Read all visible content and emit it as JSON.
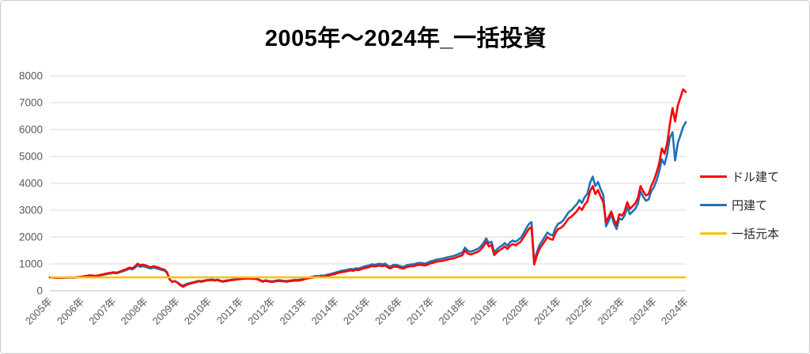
{
  "page": {
    "title": "2005年～2024年_一括投資"
  },
  "chart_data": {
    "type": "line",
    "title": "2005年～2024年_一括投資",
    "x_unit": "month",
    "x_months": 240,
    "x_start_year": "2005",
    "x_end_year": "2024",
    "x_tick_labels": [
      "2005年",
      "2006年",
      "2007年",
      "2008年",
      "2009年",
      "2010年",
      "2011年",
      "2012年",
      "2013年",
      "2014年",
      "2015年",
      "2016年",
      "2017年",
      "2018年",
      "2019年",
      "2020年",
      "2021年",
      "2022年",
      "2023年",
      "2024年",
      "2024年"
    ],
    "y_ticks": [
      0,
      1000,
      2000,
      3000,
      4000,
      5000,
      6000,
      7000,
      8000
    ],
    "ylim": [
      0,
      8000
    ],
    "grid": "horizontal",
    "legend_position": "right",
    "axis_text_color": "#595959",
    "gridline_color": "#d9d9d9",
    "axisline_color": "#bfbfbf",
    "series": [
      {
        "name": "ドル建て",
        "color": "#FF0000",
        "values": [
          500,
          494,
          487,
          481,
          489,
          484,
          496,
          492,
          499,
          490,
          506,
          518,
          530,
          545,
          560,
          576,
          568,
          555,
          570,
          590,
          612,
          636,
          655,
          672,
          690,
          672,
          705,
          740,
          778,
          820,
          865,
          835,
          905,
          1010,
          950,
          975,
          945,
          905,
          875,
          915,
          885,
          855,
          815,
          792,
          700,
          430,
          330,
          355,
          300,
          210,
          150,
          200,
          245,
          270,
          295,
          325,
          350,
          335,
          362,
          382,
          392,
          402,
          378,
          396,
          362,
          338,
          358,
          372,
          390,
          404,
          416,
          430,
          438,
          448,
          452,
          458,
          448,
          442,
          432,
          378,
          338,
          372,
          352,
          332,
          335,
          352,
          368,
          360,
          346,
          338,
          352,
          365,
          380,
          375,
          390,
          405,
          440,
          460,
          478,
          495,
          515,
          505,
          532,
          522,
          550,
          575,
          600,
          625,
          650,
          680,
          700,
          715,
          735,
          760,
          745,
          780,
          770,
          800,
          840,
          860,
          880,
          920,
          905,
          922,
          938,
          918,
          945,
          870,
          835,
          895,
          900,
          875,
          845,
          830,
          880,
          900,
          915,
          925,
          955,
          965,
          960,
          940,
          975,
          1020,
          1040,
          1075,
          1090,
          1105,
          1125,
          1150,
          1175,
          1190,
          1215,
          1250,
          1290,
          1320,
          1500,
          1390,
          1350,
          1380,
          1420,
          1460,
          1540,
          1660,
          1820,
          1650,
          1700,
          1330,
          1430,
          1510,
          1570,
          1650,
          1560,
          1680,
          1740,
          1690,
          1760,
          1830,
          1980,
          2150,
          2300,
          2380,
          980,
          1300,
          1560,
          1700,
          1850,
          2000,
          1930,
          1900,
          2150,
          2300,
          2340,
          2420,
          2560,
          2700,
          2760,
          2860,
          2960,
          3110,
          3010,
          3210,
          3320,
          3700,
          3900,
          3600,
          3750,
          3500,
          3300,
          2550,
          2750,
          2950,
          2650,
          2450,
          2850,
          2800,
          2950,
          3300,
          3050,
          3150,
          3250,
          3450,
          3900,
          3700,
          3550,
          3600,
          3900,
          4100,
          4400,
          4750,
          5300,
          5100,
          5500,
          6200,
          6800,
          6300,
          6900,
          7200,
          7500,
          7400
        ]
      },
      {
        "name": "円建て",
        "color": "#1F72B8",
        "values": [
          498,
          490,
          482,
          476,
          484,
          478,
          490,
          487,
          494,
          486,
          500,
          510,
          520,
          533,
          546,
          560,
          552,
          540,
          554,
          572,
          592,
          614,
          632,
          648,
          665,
          648,
          678,
          710,
          745,
          783,
          822,
          795,
          858,
          945,
          890,
          912,
          890,
          855,
          828,
          862,
          836,
          810,
          775,
          755,
          672,
          420,
          335,
          362,
          310,
          240,
          190,
          235,
          275,
          298,
          320,
          348,
          372,
          358,
          383,
          402,
          412,
          422,
          398,
          415,
          382,
          358,
          378,
          392,
          410,
          424,
          436,
          450,
          458,
          468,
          472,
          478,
          468,
          462,
          452,
          398,
          358,
          392,
          372,
          355,
          360,
          378,
          394,
          386,
          372,
          364,
          378,
          392,
          408,
          402,
          418,
          434,
          470,
          492,
          512,
          530,
          552,
          542,
          570,
          560,
          590,
          616,
          642,
          670,
          698,
          730,
          752,
          768,
          790,
          816,
          800,
          838,
          828,
          860,
          902,
          925,
          945,
          988,
          972,
          990,
          1008,
          986,
          1015,
          935,
          898,
          962,
          968,
          940,
          908,
          892,
          946,
          968,
          984,
          995,
          1026,
          1038,
          1032,
          1010,
          1048,
          1096,
          1118,
          1155,
          1172,
          1188,
          1210,
          1236,
          1263,
          1279,
          1306,
          1344,
          1387,
          1419,
          1610,
          1495,
          1450,
          1485,
          1525,
          1570,
          1655,
          1785,
          1950,
          1770,
          1825,
          1430,
          1540,
          1625,
          1690,
          1775,
          1680,
          1810,
          1870,
          1820,
          1895,
          1970,
          2130,
          2320,
          2480,
          2560,
          1100,
          1430,
          1700,
          1850,
          2010,
          2170,
          2090,
          2060,
          2330,
          2490,
          2540,
          2630,
          2780,
          2930,
          3000,
          3110,
          3220,
          3380,
          3270,
          3490,
          3610,
          4020,
          4250,
          3900,
          4050,
          3780,
          3560,
          2400,
          2600,
          2850,
          2500,
          2300,
          2700,
          2650,
          2800,
          3100,
          2850,
          2950,
          3050,
          3250,
          3700,
          3500,
          3350,
          3400,
          3700,
          3850,
          4100,
          4450,
          4900,
          4700,
          5100,
          5700,
          5900,
          4850,
          5500,
          5800,
          6100,
          6280
        ]
      },
      {
        "name": "一括元本",
        "color": "#FFC000",
        "constant": 500
      }
    ]
  }
}
